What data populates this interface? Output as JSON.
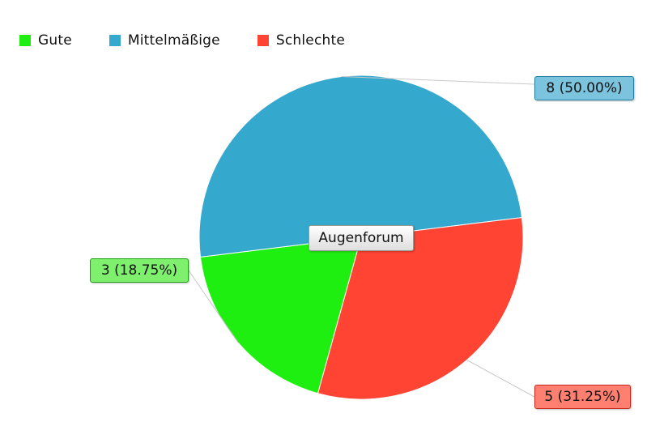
{
  "chart_data": {
    "type": "pie",
    "title": "Augenforum",
    "legend_position": "top-left",
    "categories": [
      "Gute",
      "Mittelmäßige",
      "Schlechte"
    ],
    "values": [
      3,
      8,
      5
    ],
    "data_labels": [
      "3 (18.75%)",
      "8 (50.00%)",
      "5 (31.25%)"
    ],
    "colors": [
      "#1fee11",
      "#35a8cd",
      "#ff4433"
    ],
    "label_colors": [
      {
        "fill": "#7ef06e",
        "border": "#1aa010"
      },
      {
        "fill": "#7cc3de",
        "border": "#1f7ea0"
      },
      {
        "fill": "#ff8070",
        "border": "#c8281a"
      }
    ]
  }
}
